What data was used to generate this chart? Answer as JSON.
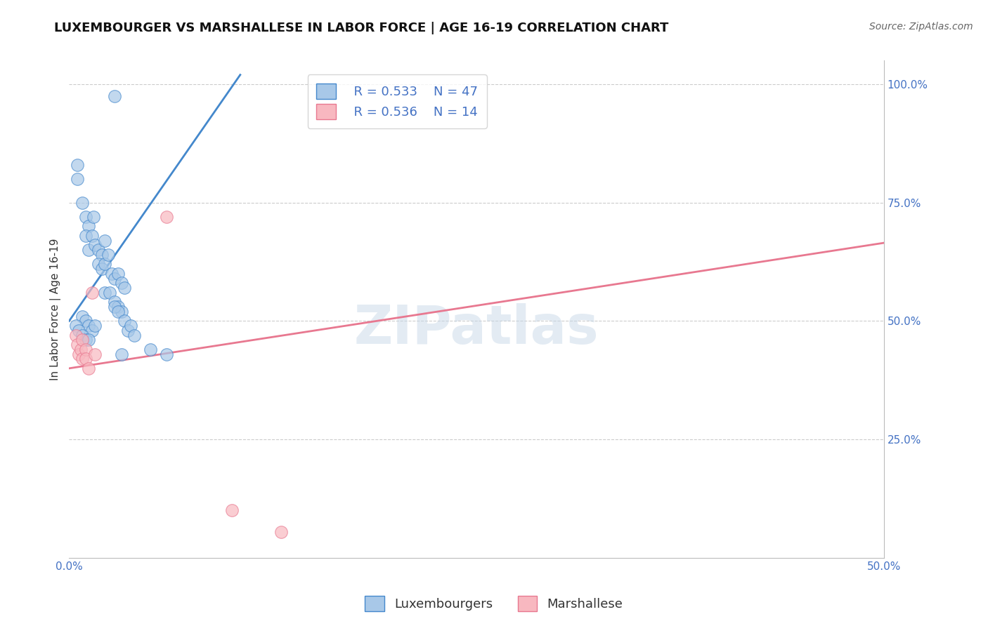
{
  "title": "LUXEMBOURGER VS MARSHALLESE IN LABOR FORCE | AGE 16-19 CORRELATION CHART",
  "source": "Source: ZipAtlas.com",
  "ylabel": "In Labor Force | Age 16-19",
  "xlim": [
    0.0,
    0.5
  ],
  "ylim": [
    0.0,
    1.05
  ],
  "grid_color": "#cccccc",
  "background_color": "#ffffff",
  "watermark": "ZIPatlas",
  "legend_r1": "R = 0.533",
  "legend_n1": "N = 47",
  "legend_r2": "R = 0.536",
  "legend_n2": "N = 14",
  "blue_color": "#a8c8e8",
  "pink_color": "#f8b8c0",
  "line_blue": "#4488cc",
  "line_pink": "#e87890",
  "blue_scatter_x": [
    0.028,
    0.005,
    0.005,
    0.008,
    0.01,
    0.012,
    0.015,
    0.01,
    0.012,
    0.014,
    0.016,
    0.018,
    0.02,
    0.022,
    0.018,
    0.02,
    0.022,
    0.024,
    0.026,
    0.028,
    0.03,
    0.032,
    0.034,
    0.022,
    0.025,
    0.028,
    0.03,
    0.032,
    0.008,
    0.01,
    0.012,
    0.014,
    0.016,
    0.004,
    0.006,
    0.008,
    0.01,
    0.012,
    0.028,
    0.03,
    0.032,
    0.034,
    0.036,
    0.038,
    0.04,
    0.06,
    0.05
  ],
  "blue_scatter_y": [
    0.975,
    0.83,
    0.8,
    0.75,
    0.72,
    0.7,
    0.72,
    0.68,
    0.65,
    0.68,
    0.66,
    0.65,
    0.64,
    0.67,
    0.62,
    0.61,
    0.62,
    0.64,
    0.6,
    0.59,
    0.6,
    0.58,
    0.57,
    0.56,
    0.56,
    0.54,
    0.53,
    0.52,
    0.51,
    0.5,
    0.49,
    0.48,
    0.49,
    0.49,
    0.48,
    0.47,
    0.46,
    0.46,
    0.53,
    0.52,
    0.43,
    0.5,
    0.48,
    0.49,
    0.47,
    0.43,
    0.44
  ],
  "pink_scatter_x": [
    0.004,
    0.005,
    0.006,
    0.007,
    0.008,
    0.008,
    0.01,
    0.01,
    0.012,
    0.014,
    0.016,
    0.06,
    0.1,
    0.13
  ],
  "pink_scatter_y": [
    0.47,
    0.45,
    0.43,
    0.44,
    0.46,
    0.42,
    0.44,
    0.42,
    0.4,
    0.56,
    0.43,
    0.72,
    0.1,
    0.055
  ],
  "blue_line_x": [
    0.0,
    0.105
  ],
  "blue_line_y": [
    0.5,
    1.02
  ],
  "pink_line_x": [
    0.0,
    0.5
  ],
  "pink_line_y": [
    0.4,
    0.665
  ],
  "title_fontsize": 13,
  "label_fontsize": 11,
  "tick_fontsize": 11,
  "legend_fontsize": 13
}
